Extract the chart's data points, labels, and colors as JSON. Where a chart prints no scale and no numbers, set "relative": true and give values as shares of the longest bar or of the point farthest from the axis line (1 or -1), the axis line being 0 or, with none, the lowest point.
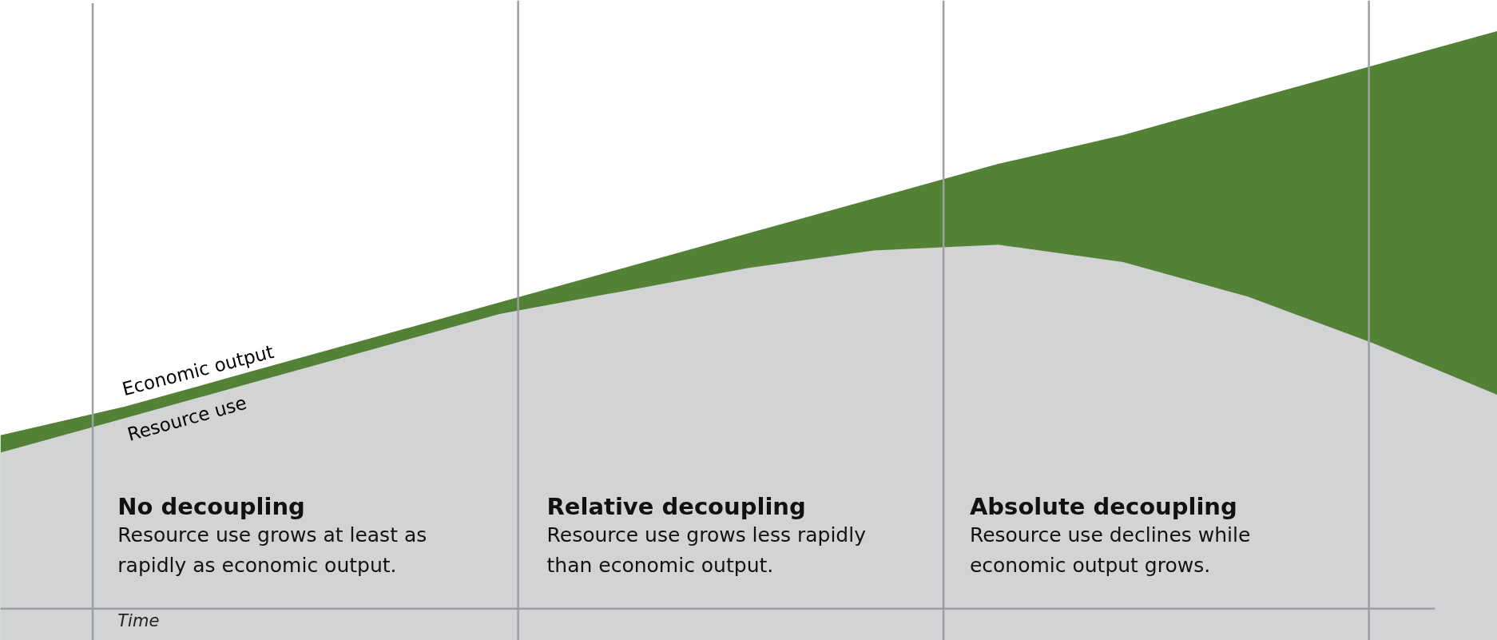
{
  "chart_data": {
    "type": "area",
    "relative": true,
    "xlabel": "Time",
    "categories": [
      null,
      null,
      null,
      null,
      null,
      null,
      null,
      null,
      null,
      null,
      null,
      null,
      null
    ],
    "series": [
      {
        "name": "Economic output",
        "color": "#538135",
        "values": [
          0.3,
          0.35,
          0.41,
          0.47,
          0.53,
          0.59,
          0.65,
          0.71,
          0.77,
          0.82,
          0.88,
          0.94,
          1.0
        ]
      },
      {
        "name": "Resource use",
        "color": "#d1d3d4",
        "values": [
          0.27,
          0.33,
          0.39,
          0.45,
          0.51,
          0.55,
          0.59,
          0.62,
          0.63,
          0.6,
          0.54,
          0.46,
          0.37
        ]
      }
    ],
    "annotations": [
      "No decoupling",
      "Resource use grows at least as\nrapidly as economic output.",
      "Relative decoupling",
      "Resource use grows less rapidly\nthan economic output.",
      "Absolute decoupling",
      "Resource use declines while\neconomic output grows."
    ]
  }
}
